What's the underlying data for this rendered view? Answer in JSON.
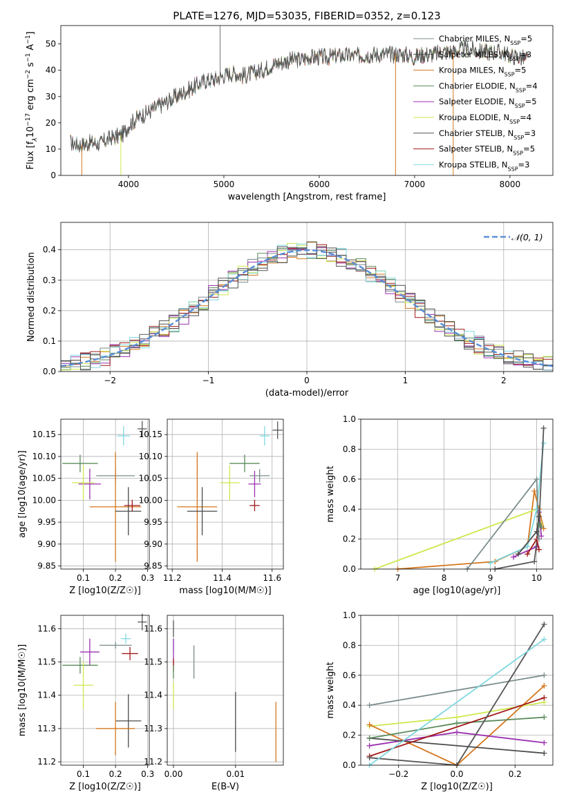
{
  "title": "PLATE=1276, MJD=53035, FIBERID=0352, z=0.123",
  "models": [
    {
      "name": "Chabrier MILES",
      "nssp": "5",
      "color": "#7a8c8c"
    },
    {
      "name": "Salpeter MILES",
      "nssp": "3",
      "color": "#4a4a4a"
    },
    {
      "name": "Kroupa MILES",
      "nssp": "5",
      "color": "#d4761c"
    },
    {
      "name": "Chabrier ELODIE",
      "nssp": "4",
      "color": "#5a8a5a"
    },
    {
      "name": "Salpeter ELODIE",
      "nssp": "5",
      "color": "#9b30b0"
    },
    {
      "name": "Kroupa ELODIE",
      "nssp": "4",
      "color": "#cde84e"
    },
    {
      "name": "Chabrier STELIB",
      "nssp": "3",
      "color": "#555555"
    },
    {
      "name": "Salpeter STELIB",
      "nssp": "5",
      "color": "#a01818"
    },
    {
      "name": "Kroupa STELIB",
      "nssp": "3",
      "color": "#7fd8e0"
    }
  ],
  "chart_data": [
    {
      "type": "line",
      "id": "spectrum",
      "title": "PLATE=1276, MJD=53035, FIBERID=0352, z=0.123",
      "xlabel": "wavelength [Angstrom, rest frame]",
      "ylabel": "Flux [fλ10^-17 erg cm^-2 s^-1 A^-1]",
      "xlim": [
        3290,
        8450
      ],
      "ylim": [
        0,
        57
      ],
      "xticks": [
        4000,
        5000,
        6000,
        7000,
        8000
      ],
      "yticks": [
        0,
        10,
        20,
        30,
        40,
        50
      ],
      "continuum": [
        [
          3390,
          12.5
        ],
        [
          3500,
          11.5
        ],
        [
          3600,
          12.5
        ],
        [
          3700,
          12
        ],
        [
          3800,
          14
        ],
        [
          3900,
          15
        ],
        [
          3950,
          16
        ],
        [
          4000,
          19
        ],
        [
          4100,
          22
        ],
        [
          4200,
          24
        ],
        [
          4300,
          26
        ],
        [
          4400,
          28
        ],
        [
          4500,
          30
        ],
        [
          4600,
          32
        ],
        [
          4700,
          34
        ],
        [
          4800,
          36
        ],
        [
          4900,
          36.5
        ],
        [
          5000,
          38
        ],
        [
          5100,
          39
        ],
        [
          5200,
          38
        ],
        [
          5300,
          39
        ],
        [
          5400,
          40
        ],
        [
          5500,
          42
        ],
        [
          5600,
          43
        ],
        [
          5700,
          44
        ],
        [
          5800,
          44
        ],
        [
          5900,
          45
        ],
        [
          6000,
          45
        ],
        [
          6100,
          45
        ],
        [
          6200,
          45.5
        ],
        [
          6300,
          45.5
        ],
        [
          6400,
          45.5
        ],
        [
          6500,
          46
        ],
        [
          6600,
          46
        ],
        [
          6700,
          46
        ],
        [
          6800,
          46
        ],
        [
          6900,
          46
        ],
        [
          7000,
          45
        ],
        [
          7100,
          46
        ],
        [
          7200,
          46
        ],
        [
          7300,
          47
        ],
        [
          7400,
          47
        ],
        [
          7500,
          48
        ],
        [
          7600,
          48
        ],
        [
          7700,
          47
        ],
        [
          7800,
          47
        ],
        [
          7900,
          47
        ],
        [
          8000,
          45.5
        ],
        [
          8100,
          45
        ],
        [
          8200,
          44
        ]
      ],
      "spikes": [
        [
          4960,
          57
        ],
        [
          3510,
          0
        ],
        [
          3920,
          0
        ],
        [
          6800,
          0
        ],
        [
          7405,
          0
        ]
      ]
    },
    {
      "type": "line",
      "id": "residuals",
      "xlabel": "(data-model)/error",
      "ylabel": "Normed distribution",
      "xlim": [
        -2.5,
        2.5
      ],
      "ylim": [
        0,
        0.49
      ],
      "xticks": [
        -2,
        -1,
        0,
        1,
        2
      ],
      "yticks": [
        0.0,
        0.1,
        0.2,
        0.3,
        0.4
      ],
      "legend": "𝒩(0, 1)",
      "legend_position": "top-right"
    },
    {
      "type": "scatter",
      "id": "age-z",
      "xlabel": "Z [log10(Z/Z☉)]",
      "ylabel": "age  [log10(age/yr)]",
      "xlim": [
        0.03,
        0.305
      ],
      "ylim": [
        9.843,
        10.185
      ],
      "xticks": [
        0.1,
        0.2,
        0.3
      ],
      "yticks": [
        9.85,
        9.9,
        9.95,
        10.0,
        10.05,
        10.1,
        10.15
      ],
      "points": [
        {
          "model": 6,
          "x": 0.283,
          "y": 10.163,
          "xerr": 0.014,
          "yerr": 0.018
        },
        {
          "model": 8,
          "x": 0.225,
          "y": 10.147,
          "xerr": 0.02,
          "yerr": 0.022
        },
        {
          "model": 3,
          "x": 0.09,
          "y": 10.084,
          "xerr": 0.055,
          "yerr": 0.02
        },
        {
          "model": 4,
          "x": 0.12,
          "y": 10.037,
          "xerr": 0.035,
          "yerr": 0.035
        },
        {
          "model": 0,
          "x": 0.2,
          "y": 10.056,
          "xerr": 0.06,
          "yerr": 0.015
        },
        {
          "model": 5,
          "x": 0.1,
          "y": 10.04,
          "xerr": 0.035,
          "yerr": 0.04
        },
        {
          "model": 2,
          "x": 0.2,
          "y": 9.985,
          "xerr": 0.08,
          "yerr": 0.125
        },
        {
          "model": 1,
          "x": 0.24,
          "y": 9.975,
          "xerr": 0.04,
          "yerr": 0.055
        },
        {
          "model": 7,
          "x": 0.252,
          "y": 9.988,
          "xerr": 0.025,
          "yerr": 0.013
        }
      ]
    },
    {
      "type": "scatter",
      "id": "age-mass",
      "xlabel": "mass [log10(M/M☉)]",
      "xlim": [
        11.18,
        11.645
      ],
      "ylim": [
        9.843,
        10.185
      ],
      "xticks": [
        11.2,
        11.4,
        11.6
      ],
      "yticks": [
        9.85,
        9.9,
        9.95,
        10.0,
        10.05,
        10.1,
        10.15
      ],
      "points": [
        {
          "model": 6,
          "x": 11.622,
          "y": 10.16,
          "xerr": 0.02,
          "yerr": 0.02
        },
        {
          "model": 8,
          "x": 11.57,
          "y": 10.147,
          "xerr": 0.02,
          "yerr": 0.022
        },
        {
          "model": 3,
          "x": 11.49,
          "y": 10.084,
          "xerr": 0.06,
          "yerr": 0.02
        },
        {
          "model": 4,
          "x": 11.53,
          "y": 10.037,
          "xerr": 0.025,
          "yerr": 0.03
        },
        {
          "model": 0,
          "x": 11.55,
          "y": 10.056,
          "xerr": 0.04,
          "yerr": 0.015
        },
        {
          "model": 5,
          "x": 11.43,
          "y": 10.04,
          "xerr": 0.04,
          "yerr": 0.04
        },
        {
          "model": 2,
          "x": 11.3,
          "y": 9.985,
          "xerr": 0.08,
          "yerr": 0.125
        },
        {
          "model": 1,
          "x": 11.32,
          "y": 9.975,
          "xerr": 0.06,
          "yerr": 0.055
        },
        {
          "model": 7,
          "x": 11.53,
          "y": 9.988,
          "xerr": 0.02,
          "yerr": 0.013
        }
      ]
    },
    {
      "type": "line",
      "id": "weight-age",
      "xlabel": "age  [log10(age/yr)]",
      "ylabel": "mass weight",
      "xlim": [
        6.2,
        10.35
      ],
      "ylim": [
        0,
        1
      ],
      "xticks": [
        7,
        8,
        9,
        10
      ],
      "yticks": [
        0.0,
        0.2,
        0.4,
        0.6,
        0.8,
        1.0
      ],
      "series": [
        {
          "model": 2,
          "points": [
            [
              7.0,
              0.0
            ],
            [
              9.1,
              0.05
            ],
            [
              9.8,
              0.15
            ],
            [
              9.95,
              0.52
            ],
            [
              10.05,
              0.4
            ],
            [
              10.15,
              0.27
            ]
          ]
        },
        {
          "model": 5,
          "points": [
            [
              6.5,
              0.0
            ],
            [
              10.0,
              0.4
            ],
            [
              10.1,
              0.3
            ]
          ]
        },
        {
          "model": 4,
          "points": [
            [
              9.5,
              0.08
            ],
            [
              10.0,
              0.15
            ],
            [
              10.05,
              0.38
            ],
            [
              10.1,
              0.22
            ]
          ]
        },
        {
          "model": 8,
          "points": [
            [
              9.0,
              0.04
            ],
            [
              9.8,
              0.15
            ],
            [
              10.0,
              0.4
            ],
            [
              10.15,
              0.84
            ]
          ]
        },
        {
          "model": 6,
          "points": [
            [
              9.1,
              0.0
            ],
            [
              9.95,
              0.05
            ],
            [
              10.05,
              0.3
            ],
            [
              10.15,
              0.94
            ]
          ]
        },
        {
          "model": 7,
          "points": [
            [
              9.8,
              0.1
            ],
            [
              10.0,
              0.2
            ],
            [
              10.05,
              0.13
            ]
          ]
        },
        {
          "model": 0,
          "points": [
            [
              8.5,
              0.0
            ],
            [
              10.0,
              0.6
            ],
            [
              10.05,
              0.2
            ]
          ]
        },
        {
          "model": 1,
          "points": [
            [
              9.6,
              0.1
            ],
            [
              10.0,
              0.25
            ],
            [
              10.05,
              0.35
            ]
          ]
        },
        {
          "model": 3,
          "points": [
            [
              10.05,
              0.3
            ],
            [
              10.1,
              0.28
            ]
          ]
        }
      ]
    },
    {
      "type": "scatter",
      "id": "mass-z",
      "xlabel": "Z [log10(Z/Z☉)]",
      "ylabel": "mass [log10(M/M☉)]",
      "xlim": [
        0.03,
        0.305
      ],
      "ylim": [
        11.19,
        11.64
      ],
      "xticks": [
        0.1,
        0.2,
        0.3
      ],
      "yticks": [
        11.2,
        11.3,
        11.4,
        11.5,
        11.6
      ],
      "points": [
        {
          "model": 6,
          "x": 0.283,
          "y": 11.62,
          "xerr": 0.014,
          "yerr": 0.025
        },
        {
          "model": 8,
          "x": 0.232,
          "y": 11.57,
          "xerr": 0.015,
          "yerr": 0.015
        },
        {
          "model": 4,
          "x": 0.12,
          "y": 11.53,
          "xerr": 0.03,
          "yerr": 0.04
        },
        {
          "model": 0,
          "x": 0.2,
          "y": 11.55,
          "xerr": 0.05,
          "yerr": 0.01
        },
        {
          "model": 7,
          "x": 0.245,
          "y": 11.525,
          "xerr": 0.025,
          "yerr": 0.02
        },
        {
          "model": 3,
          "x": 0.09,
          "y": 11.49,
          "xerr": 0.055,
          "yerr": 0.025
        },
        {
          "model": 5,
          "x": 0.1,
          "y": 11.43,
          "xerr": 0.03,
          "yerr": 0.07
        },
        {
          "model": 1,
          "x": 0.24,
          "y": 11.323,
          "xerr": 0.04,
          "yerr": 0.08
        },
        {
          "model": 2,
          "x": 0.2,
          "y": 11.3,
          "xerr": 0.06,
          "yerr": 0.08
        }
      ]
    },
    {
      "type": "scatter",
      "id": "mass-ebv",
      "xlabel": "E(B-V)",
      "xlim": [
        -0.001,
        0.0177
      ],
      "ylim": [
        11.19,
        11.64
      ],
      "xticks": [
        0.0,
        0.01
      ],
      "yticks": [
        11.2,
        11.3,
        11.4,
        11.5,
        11.6
      ],
      "points": [
        {
          "model": 6,
          "x": 0.0,
          "y": 11.6,
          "xerr": 0.0,
          "yerr": 0.025
        },
        {
          "model": 8,
          "x": 0.0,
          "y": 11.55,
          "xerr": 0.0,
          "yerr": 0.02
        },
        {
          "model": 4,
          "x": 0.0,
          "y": 11.53,
          "xerr": 0.0,
          "yerr": 0.04
        },
        {
          "model": 7,
          "x": 0.0,
          "y": 11.49,
          "xerr": 0.0,
          "yerr": 0.02
        },
        {
          "model": 3,
          "x": 0.0,
          "y": 11.47,
          "xerr": 0.0,
          "yerr": 0.02
        },
        {
          "model": 5,
          "x": 0.0,
          "y": 11.4,
          "xerr": 0.0,
          "yerr": 0.04
        },
        {
          "model": 0,
          "x": 0.0033,
          "y": 11.5,
          "xerr": 0.0,
          "yerr": 0.05
        },
        {
          "model": 1,
          "x": 0.01,
          "y": 11.32,
          "xerr": 0.0,
          "yerr": 0.09
        },
        {
          "model": 2,
          "x": 0.0165,
          "y": 11.29,
          "xerr": 0.0,
          "yerr": 0.09
        }
      ]
    },
    {
      "type": "line",
      "id": "weight-z",
      "xlabel": "Z [log10(Z/Z☉)]",
      "ylabel": "mass weight",
      "xlim": [
        -0.33,
        0.33
      ],
      "ylim": [
        0,
        1
      ],
      "xticks": [
        -0.2,
        0.0,
        0.2
      ],
      "yticks": [
        0.0,
        0.2,
        0.4,
        0.6,
        0.8,
        1.0
      ],
      "series": [
        {
          "model": 0,
          "points": [
            [
              -0.3,
              0.4
            ],
            [
              0.3,
              0.6
            ]
          ]
        },
        {
          "model": 5,
          "points": [
            [
              -0.3,
              0.26
            ],
            [
              0.0,
              0.32
            ],
            [
              0.3,
              0.42
            ]
          ]
        },
        {
          "model": 2,
          "points": [
            [
              -0.3,
              0.27
            ],
            [
              0.0,
              0.0
            ],
            [
              0.3,
              0.53
            ]
          ]
        },
        {
          "model": 4,
          "points": [
            [
              -0.3,
              0.13
            ],
            [
              0.0,
              0.22
            ],
            [
              0.3,
              0.15
            ]
          ]
        },
        {
          "model": 1,
          "points": [
            [
              -0.3,
              0.18
            ],
            [
              0.3,
              0.08
            ]
          ]
        },
        {
          "model": 3,
          "points": [
            [
              -0.3,
              0.18
            ],
            [
              0.0,
              0.28
            ],
            [
              0.3,
              0.32
            ]
          ]
        },
        {
          "model": 7,
          "points": [
            [
              -0.3,
              0.06
            ],
            [
              0.3,
              0.45
            ]
          ]
        },
        {
          "model": 6,
          "points": [
            [
              -0.3,
              0.05
            ],
            [
              0.0,
              0.0
            ],
            [
              0.3,
              0.94
            ]
          ]
        },
        {
          "model": 8,
          "points": [
            [
              -0.3,
              0.0
            ],
            [
              0.3,
              0.84
            ]
          ]
        }
      ]
    }
  ]
}
